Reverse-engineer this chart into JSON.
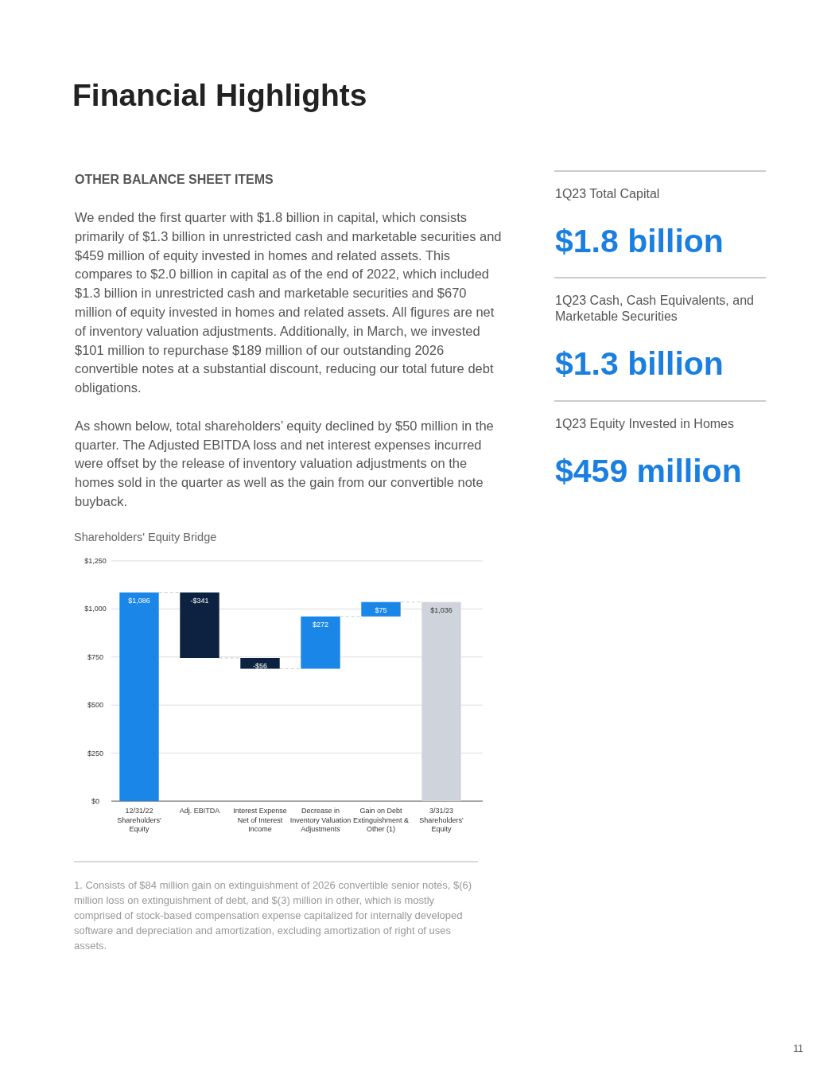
{
  "chart_data": [
    {
      "type": "other",
      "title": "Financial Highlights",
      "subtitle": "OTHER BALANCE SHEET ITEMS",
      "annotations": [
        "We ended the first quarter with $1.8 billion in capital, which consists primarily of $1.3 billion in unrestricted cash and marketable securities and $459 million of equity invested in homes and related assets. This compares to $2.0 billion in capital as of the end of 2022, which included $1.3 billion in unrestricted cash and marketable securities and $670 million of equity invested in homes and related assets. All figures are net of inventory valuation adjustments. Additionally, in March, we invested $101 million to repurchase $189 million of our outstanding 2026 convertible notes at a substantial discount, reducing our total future debt obligations.",
        "As shown below, total shareholders’ equity declined by $50 million in the quarter. The Adjusted EBITDA loss and net interest expenses incurred were offset by the release of inventory valuation adjustments on the homes sold in the quarter as well as the gain from our convertible note buyback.",
        "11"
      ]
    },
    {
      "type": "other",
      "annotations": [
        "1Q23 Total Capital",
        "$1.8 billion",
        "1Q23 Cash, Cash Equivalents, and Marketable Securities",
        "$1.3 billion",
        "1Q23 Equity Invested in Homes",
        "$459 million"
      ]
    },
    {
      "type": "bar",
      "title": "Shareholders' Equity Bridge",
      "categories": [
        "12/31/22 Shareholders' Equity",
        "Adj. EBITDA",
        "Interest Expense Net of Interest Income",
        "Decrease in Inventory Valuation Adjustments",
        "Gain on Debt Extinguishment & Other (1)",
        "3/31/23 Shareholders' Equity"
      ],
      "values": [
        1086,
        -341,
        -56,
        272,
        75,
        1036
      ],
      "base": [
        0,
        1086,
        745,
        689,
        961,
        0
      ],
      "colors": [
        "#1a86e8",
        "#0d2240",
        "#0d2240",
        "#1a86e8",
        "#1a86e8",
        "#cfd4dc"
      ],
      "value_labels": [
        "$1,086",
        "-$341",
        "-$56",
        "$272",
        "$75",
        "$1,036"
      ],
      "ylim": [
        0,
        1250
      ],
      "yticks": [
        {
          "value": 0,
          "label": "$0"
        },
        {
          "value": 250,
          "label": "$250"
        },
        {
          "value": 500,
          "label": "$500"
        },
        {
          "value": 750,
          "label": "$750"
        },
        {
          "value": 1000,
          "label": "$1,000"
        },
        {
          "value": 1250,
          "label": "$1,250"
        }
      ],
      "grid": "y",
      "annotations": [
        "1. Consists of $84 million gain on extinguishment of 2026 convertible senior notes, $(6) million loss on extinguishment of debt, and $(3) million in other, which is mostly comprised of stock-based compensation expense capitalized for internally developed software and depreciation and amortization, excluding amortization of right of uses assets."
      ]
    }
  ]
}
